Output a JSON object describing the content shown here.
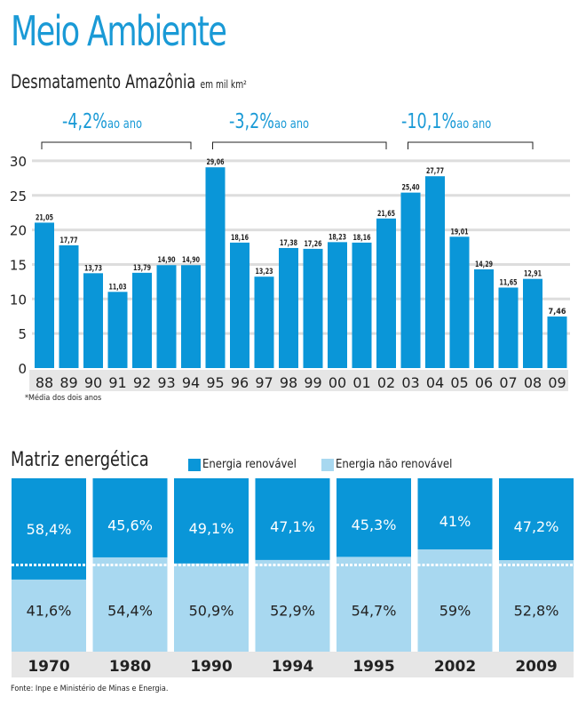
{
  "title": "Meio Ambiente",
  "subtitle": "Desmatamento Amazônia",
  "unit": "em mil km²",
  "note": "*Média dos dois anos",
  "source": "Fonte: Inpe e Ministério de Minas e Energia.",
  "colors": {
    "bar": "#0a96d8",
    "renewable": "#0a96d8",
    "nonrenewable": "#a8d8f0",
    "title": "#1a9ad6",
    "band": "#e6e6e6"
  },
  "periods": [
    {
      "value": "-4,2%",
      "suffix": "ao ano"
    },
    {
      "value": "-3,2%",
      "suffix": "ao ano"
    },
    {
      "value": "-10,1%",
      "suffix": "ao ano"
    }
  ],
  "chart_data": [
    {
      "type": "bar",
      "title": "Desmatamento Amazônia",
      "ylabel": "em mil km²",
      "ylim": [
        0,
        30
      ],
      "yticks": [
        0,
        5,
        10,
        15,
        20,
        25,
        30
      ],
      "grid": true,
      "categories": [
        "88",
        "89",
        "90",
        "91",
        "92",
        "93",
        "94",
        "95",
        "96",
        "97",
        "98",
        "99",
        "00",
        "01",
        "02",
        "03",
        "04",
        "05",
        "06",
        "07",
        "08",
        "09"
      ],
      "values": [
        21.05,
        17.77,
        13.73,
        11.03,
        13.79,
        14.9,
        14.9,
        29.06,
        18.16,
        13.23,
        17.38,
        17.26,
        18.23,
        18.16,
        21.65,
        25.4,
        27.77,
        19.01,
        14.29,
        11.65,
        12.91,
        7.46
      ],
      "labels": [
        "21,05",
        "17,77",
        "13,73",
        "11,03",
        "13,79",
        "14,90",
        "14,90",
        "29,06",
        "18,16",
        "13,23",
        "17,38",
        "17,26",
        "18,23",
        "18,16",
        "21,65",
        "25,40",
        "27,77",
        "19,01",
        "14,29",
        "11,65",
        "12,91",
        "7,46"
      ]
    },
    {
      "type": "bar",
      "title": "Matriz energética",
      "stacked": true,
      "legend": [
        "Energia renovável",
        "Energia não renovável"
      ],
      "categories": [
        "1970",
        "1980",
        "1990",
        "1994",
        "1995",
        "2002",
        "2009"
      ],
      "series": [
        {
          "name": "Energia renovável",
          "values": [
            58.4,
            45.6,
            49.1,
            47.1,
            45.3,
            41,
            47.2
          ],
          "labels": [
            "58,4%",
            "45,6%",
            "49,1%",
            "47,1%",
            "45,3%",
            "41%",
            "47,2%"
          ]
        },
        {
          "name": "Energia não renovável",
          "values": [
            41.6,
            54.4,
            50.9,
            52.9,
            54.7,
            59,
            52.8
          ],
          "labels": [
            "41,6%",
            "54,4%",
            "50,9%",
            "52,9%",
            "54,7%",
            "59%",
            "52,8%"
          ]
        }
      ]
    }
  ]
}
